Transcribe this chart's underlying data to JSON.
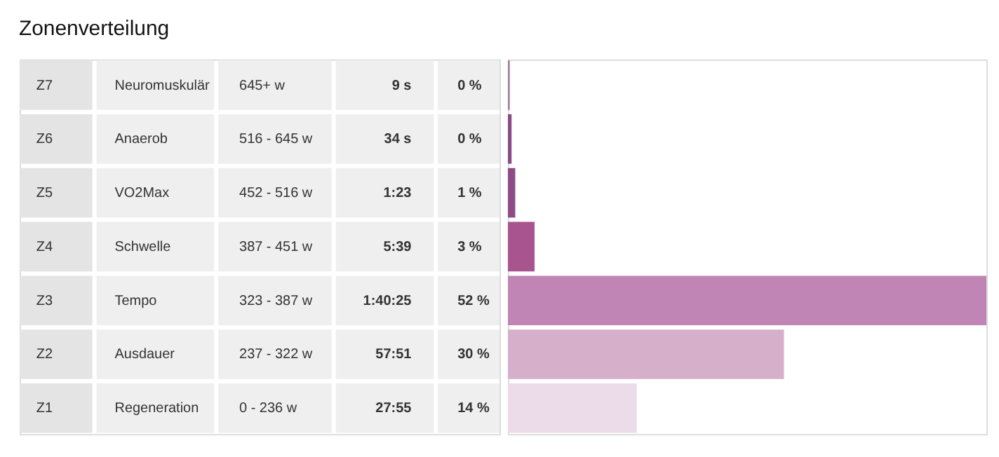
{
  "chart_data": {
    "type": "bar",
    "orientation": "horizontal",
    "title": "Zonenverteilung",
    "categories": [
      "Z7",
      "Z6",
      "Z5",
      "Z4",
      "Z3",
      "Z2",
      "Z1"
    ],
    "values": [
      0.2,
      0.4,
      0.8,
      2.9,
      52,
      30,
      14
    ],
    "value_labels": [
      "0 %",
      "0 %",
      "1 %",
      "3 %",
      "52 %",
      "30 %",
      "14 %"
    ],
    "colors": [
      "#a07a9a",
      "#8b4a83",
      "#8e4a87",
      "#a8558f",
      "#c085b5",
      "#d6afcb",
      "#ecdbe8"
    ],
    "annotations": [
      "Neuromuskulär",
      "645+ w",
      "9 s",
      "Anaerob",
      "516 - 645 w",
      "34 s",
      "VO2Max",
      "452 - 516 w",
      "1:23",
      "Schwelle",
      "387 - 451 w",
      "5:39",
      "Tempo",
      "323 - 387 w",
      "1:40:25",
      "Ausdauer",
      "237 - 322 w",
      "57:51",
      "Regeneration",
      "0 - 236 w",
      "27:55"
    ]
  }
}
